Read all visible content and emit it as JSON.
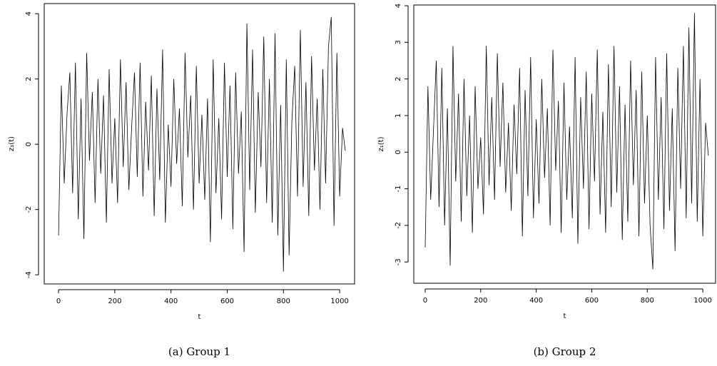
{
  "chart_data": [
    {
      "type": "line",
      "caption": "(a) Group 1",
      "xlabel": "t",
      "ylabel": "z₁(t)",
      "x": [
        0,
        10,
        20,
        30,
        40,
        50,
        60,
        70,
        80,
        90,
        100,
        110,
        120,
        130,
        140,
        150,
        160,
        170,
        180,
        190,
        200,
        210,
        220,
        230,
        240,
        250,
        260,
        270,
        280,
        290,
        300,
        310,
        320,
        330,
        340,
        350,
        360,
        370,
        380,
        390,
        400,
        410,
        420,
        430,
        440,
        450,
        460,
        470,
        480,
        490,
        500,
        510,
        520,
        530,
        540,
        550,
        560,
        570,
        580,
        590,
        600,
        610,
        620,
        630,
        640,
        650,
        660,
        670,
        680,
        690,
        700,
        710,
        720,
        730,
        740,
        750,
        760,
        770,
        780,
        790,
        800,
        810,
        820,
        830,
        840,
        850,
        860,
        870,
        880,
        890,
        900,
        910,
        920,
        930,
        940,
        950,
        960,
        970,
        980,
        990,
        1000,
        1010,
        1020
      ],
      "values": [
        -2.8,
        1.8,
        -1.2,
        0.9,
        2.2,
        -1.5,
        2.5,
        -2.3,
        1.4,
        -2.9,
        2.8,
        -0.5,
        1.6,
        -1.8,
        2.0,
        -0.9,
        1.5,
        -2.4,
        2.3,
        -1.2,
        0.8,
        -1.8,
        2.6,
        -0.7,
        1.9,
        -1.4,
        0.5,
        2.2,
        -1.0,
        2.5,
        -1.6,
        1.3,
        -0.8,
        2.1,
        -2.2,
        1.7,
        -1.1,
        2.9,
        -2.4,
        0.6,
        -1.3,
        2.0,
        -0.6,
        1.1,
        -1.9,
        2.8,
        -0.4,
        1.5,
        -2.0,
        2.4,
        -1.2,
        0.9,
        -1.7,
        1.4,
        -3.0,
        2.6,
        -1.5,
        0.8,
        -2.3,
        2.5,
        -1.0,
        1.8,
        -2.6,
        2.2,
        -0.9,
        1.0,
        -3.3,
        3.7,
        -1.4,
        2.9,
        -2.1,
        1.6,
        -0.7,
        3.3,
        -1.8,
        2.0,
        -2.4,
        3.4,
        -2.8,
        1.2,
        -3.9,
        2.6,
        -3.4,
        0.7,
        2.4,
        -1.6,
        3.5,
        -1.3,
        1.9,
        -2.2,
        2.7,
        -0.8,
        1.4,
        -2.0,
        2.3,
        -1.2,
        3.0,
        3.9,
        -2.5,
        2.8,
        -1.6,
        0.5,
        -0.2
      ],
      "color": "#000000",
      "xlim": [
        -51,
        1053
      ],
      "ylim": [
        -4.28,
        4.31
      ],
      "xticks": [
        0,
        200,
        400,
        600,
        800,
        1000
      ],
      "yticks": [
        -4,
        -2,
        0,
        2,
        4
      ]
    },
    {
      "type": "line",
      "caption": "(b) Group 2",
      "xlabel": "t",
      "ylabel": "z₁(t)",
      "x": [
        0,
        10,
        20,
        30,
        40,
        50,
        60,
        70,
        80,
        90,
        100,
        110,
        120,
        130,
        140,
        150,
        160,
        170,
        180,
        190,
        200,
        210,
        220,
        230,
        240,
        250,
        260,
        270,
        280,
        290,
        300,
        310,
        320,
        330,
        340,
        350,
        360,
        370,
        380,
        390,
        400,
        410,
        420,
        430,
        440,
        450,
        460,
        470,
        480,
        490,
        500,
        510,
        520,
        530,
        540,
        550,
        560,
        570,
        580,
        590,
        600,
        610,
        620,
        630,
        640,
        650,
        660,
        670,
        680,
        690,
        700,
        710,
        720,
        730,
        740,
        750,
        760,
        770,
        780,
        790,
        800,
        810,
        820,
        830,
        840,
        850,
        860,
        870,
        880,
        890,
        900,
        910,
        920,
        930,
        940,
        950,
        960,
        970,
        980,
        990,
        1000,
        1010,
        1020
      ],
      "values": [
        -2.6,
        1.8,
        -1.3,
        0.6,
        2.5,
        -1.5,
        2.3,
        -2.0,
        1.2,
        -3.1,
        2.9,
        -0.8,
        1.6,
        -1.9,
        2.0,
        -1.2,
        1.0,
        -2.2,
        1.8,
        -1.0,
        0.4,
        -1.7,
        2.9,
        -0.9,
        1.5,
        -1.3,
        2.7,
        -0.4,
        1.9,
        -1.1,
        0.8,
        -1.6,
        1.3,
        -0.6,
        2.3,
        -2.3,
        1.7,
        -1.2,
        2.6,
        -1.8,
        0.9,
        -1.4,
        2.0,
        -0.7,
        1.2,
        -2.0,
        2.8,
        -0.5,
        1.4,
        -2.2,
        1.9,
        -1.3,
        0.7,
        -1.8,
        2.6,
        -2.5,
        1.5,
        -1.0,
        2.2,
        -2.1,
        1.6,
        -0.8,
        2.8,
        -1.7,
        1.1,
        -2.2,
        2.4,
        -1.5,
        2.9,
        -1.1,
        1.8,
        -2.4,
        1.3,
        -1.9,
        2.5,
        -0.9,
        1.7,
        -2.3,
        2.2,
        -1.4,
        1.0,
        -2.0,
        -3.2,
        2.6,
        -1.3,
        1.5,
        -2.1,
        2.7,
        -1.6,
        1.2,
        -2.7,
        2.3,
        -1.0,
        2.9,
        -1.8,
        3.4,
        -1.4,
        3.8,
        -1.9,
        2.0,
        -2.3,
        0.8,
        -0.1
      ],
      "color": "#000000",
      "xlim": [
        -41,
        1046
      ],
      "ylim": [
        -3.58,
        4.02
      ],
      "xticks": [
        0,
        200,
        400,
        600,
        800,
        1000
      ],
      "yticks": [
        -3,
        -2,
        -1,
        0,
        1,
        2,
        3,
        4
      ]
    }
  ]
}
